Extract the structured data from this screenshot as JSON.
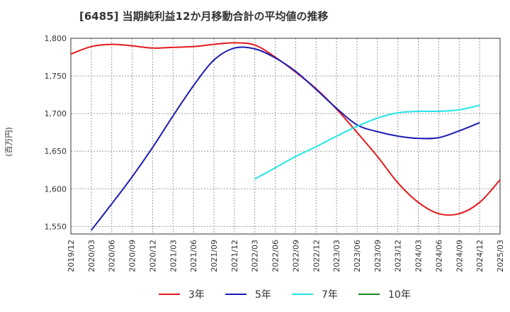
{
  "chart_data": {
    "type": "line",
    "title": "[6485]  当期純利益12か月移動合計の平均値の推移",
    "ylabel": "(百万円)",
    "xlabel": "",
    "ylim": [
      1540,
      1800
    ],
    "yticks": [
      1550,
      1600,
      1650,
      1700,
      1750,
      1800
    ],
    "ytick_labels": [
      "1,550",
      "1,600",
      "1,650",
      "1,700",
      "1,750",
      "1,800"
    ],
    "x_ticks": [
      "2019/12",
      "2020/03",
      "2020/06",
      "2020/09",
      "2020/12",
      "2021/03",
      "2021/06",
      "2021/09",
      "2021/12",
      "2022/03",
      "2022/06",
      "2022/09",
      "2022/12",
      "2023/03",
      "2023/06",
      "2023/09",
      "2023/12",
      "2024/03",
      "2024/06",
      "2024/09",
      "2024/12",
      "2025/03"
    ],
    "grid": true,
    "legend_position": "bottom",
    "series": [
      {
        "name": "3年",
        "color": "#e31a1c",
        "start_index": 0,
        "values": [
          1779,
          1789,
          1792,
          1790,
          1787,
          1788,
          1789,
          1792,
          1794,
          1791,
          1775,
          1755,
          1733,
          1706,
          1675,
          1643,
          1608,
          1582,
          1567,
          1567,
          1582,
          1612
        ]
      },
      {
        "name": "5年",
        "color": "#1c1cb4",
        "start_index": 1,
        "values": [
          1545,
          1580,
          1616,
          1655,
          1697,
          1737,
          1771,
          1787,
          1786,
          1774,
          1756,
          1732,
          1707,
          1685,
          1676,
          1670,
          1667,
          1668,
          1677,
          1688
        ]
      },
      {
        "name": "7年",
        "color": "#22e6e6",
        "start_index": 9,
        "values": [
          1613,
          1628,
          1643,
          1656,
          1670,
          1683,
          1694,
          1701,
          1703,
          1703,
          1705,
          1711
        ]
      },
      {
        "name": "10年",
        "color": "#1a8c1a",
        "start_index": 0,
        "values": []
      }
    ]
  }
}
